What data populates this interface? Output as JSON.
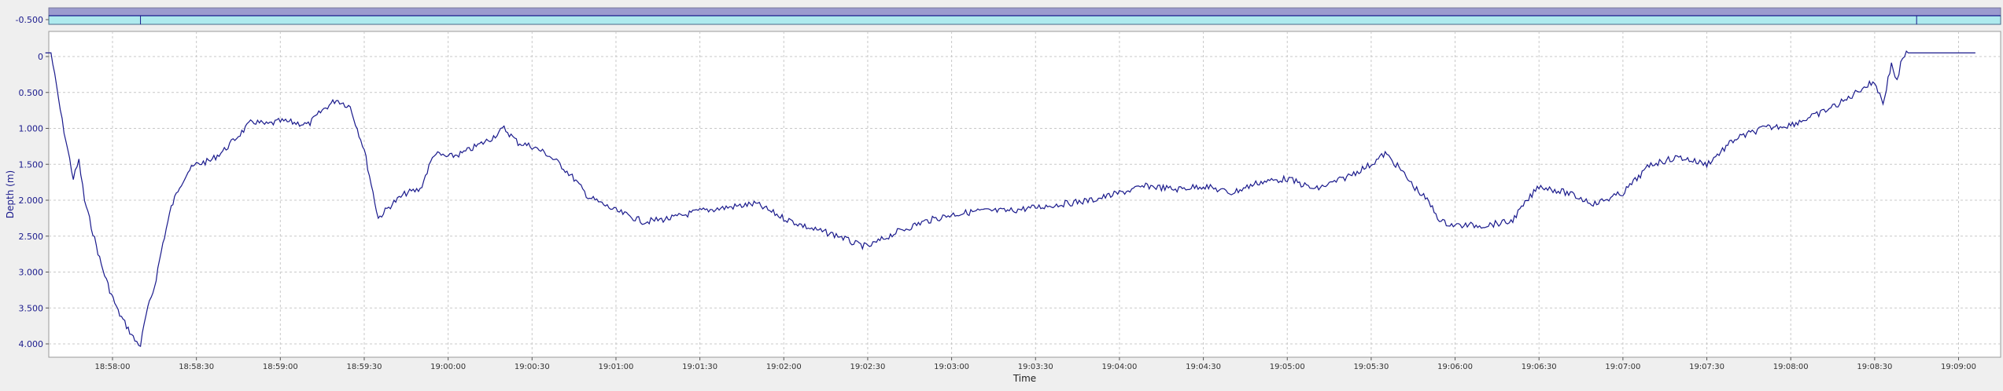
{
  "chart_data": {
    "type": "line",
    "title": "",
    "xlabel": "Time",
    "ylabel": "Depth (m)",
    "y_inverted": true,
    "ylim": [
      -0.5,
      4.2
    ],
    "xlim": [
      "18:57:34",
      "19:09:06"
    ],
    "grid": true,
    "line_color": "#1a1a8c",
    "top_strip": {
      "label": "-0.500",
      "value": -0.5,
      "colors": {
        "upper": "#9b9bcf",
        "lower": "#aeeaee"
      },
      "markers": [
        "18:58:10",
        "19:08:45"
      ]
    },
    "y_ticks": [
      {
        "value": 0,
        "label": "0"
      },
      {
        "value": 0.5,
        "label": "0.500"
      },
      {
        "value": 1.0,
        "label": "1.000"
      },
      {
        "value": 1.5,
        "label": "1.500"
      },
      {
        "value": 2.0,
        "label": "2.000"
      },
      {
        "value": 2.5,
        "label": "2.500"
      },
      {
        "value": 3.0,
        "label": "3.000"
      },
      {
        "value": 3.5,
        "label": "3.500"
      },
      {
        "value": 4.0,
        "label": "4.000"
      }
    ],
    "x_ticks": [
      "18:58:00",
      "18:58:30",
      "18:59:00",
      "18:59:30",
      "19:00:00",
      "19:00:30",
      "19:01:00",
      "19:01:30",
      "19:02:00",
      "19:02:30",
      "19:03:00",
      "19:03:30",
      "19:04:00",
      "19:04:30",
      "19:05:00",
      "19:05:30",
      "19:06:00",
      "19:06:30",
      "19:07:00",
      "19:07:30",
      "19:08:00",
      "19:08:30",
      "19:09:00"
    ],
    "series": [
      {
        "x": [
          "18:57:36",
          "18:57:38",
          "18:57:42",
          "18:57:46",
          "18:57:48",
          "18:57:50",
          "18:57:53",
          "18:57:56",
          "18:57:59",
          "18:58:02",
          "18:58:05",
          "18:58:08",
          "18:58:10",
          "18:58:12",
          "18:58:15",
          "18:58:18",
          "18:58:21",
          "18:58:24",
          "18:58:27",
          "18:58:30",
          "18:58:35",
          "18:58:40",
          "18:58:45",
          "18:58:50",
          "18:58:55",
          "18:59:00",
          "18:59:05",
          "18:59:10",
          "18:59:15",
          "18:59:20",
          "18:59:25",
          "18:59:30",
          "18:59:35",
          "18:59:40",
          "18:59:45",
          "18:59:50",
          "18:59:55",
          "19:00:00",
          "19:00:05",
          "19:00:10",
          "19:00:15",
          "19:00:20",
          "19:00:25",
          "19:00:30",
          "19:00:35",
          "19:00:40",
          "19:00:45",
          "19:00:50",
          "19:00:55",
          "19:01:00",
          "19:01:10",
          "19:01:20",
          "19:01:30",
          "19:01:40",
          "19:01:50",
          "19:02:00",
          "19:02:10",
          "19:02:20",
          "19:02:25",
          "19:02:30",
          "19:02:40",
          "19:02:50",
          "19:03:00",
          "19:03:10",
          "19:03:20",
          "19:03:30",
          "19:03:40",
          "19:03:50",
          "19:04:00",
          "19:04:10",
          "19:04:20",
          "19:04:30",
          "19:04:40",
          "19:04:50",
          "19:05:00",
          "19:05:10",
          "19:05:20",
          "19:05:30",
          "19:05:35",
          "19:05:40",
          "19:05:45",
          "19:05:50",
          "19:05:55",
          "19:06:00",
          "19:06:10",
          "19:06:20",
          "19:06:30",
          "19:06:40",
          "19:06:50",
          "19:07:00",
          "19:07:10",
          "19:07:20",
          "19:07:30",
          "19:07:40",
          "19:07:50",
          "19:08:00",
          "19:08:10",
          "19:08:20",
          "19:08:25",
          "19:08:30",
          "19:08:33",
          "19:08:36",
          "19:08:38",
          "19:08:40",
          "19:08:42",
          "19:08:45",
          "19:09:06"
        ],
        "y": [
          -0.05,
          -0.05,
          0.9,
          1.7,
          1.45,
          2.0,
          2.45,
          2.9,
          3.25,
          3.55,
          3.75,
          3.95,
          4.02,
          3.6,
          3.2,
          2.6,
          2.1,
          1.8,
          1.6,
          1.5,
          1.45,
          1.3,
          1.1,
          0.9,
          0.95,
          0.9,
          0.92,
          0.95,
          0.75,
          0.6,
          0.7,
          1.3,
          2.25,
          2.05,
          1.9,
          1.85,
          1.35,
          1.4,
          1.35,
          1.25,
          1.15,
          1.0,
          1.2,
          1.25,
          1.35,
          1.5,
          1.7,
          1.95,
          2.05,
          2.15,
          2.3,
          2.25,
          2.15,
          2.1,
          2.05,
          2.25,
          2.4,
          2.5,
          2.6,
          2.65,
          2.45,
          2.3,
          2.2,
          2.15,
          2.15,
          2.1,
          2.05,
          2.0,
          1.9,
          1.8,
          1.85,
          1.8,
          1.9,
          1.75,
          1.7,
          1.85,
          1.7,
          1.5,
          1.35,
          1.55,
          1.8,
          2.0,
          2.3,
          2.35,
          2.35,
          2.3,
          1.8,
          1.9,
          2.05,
          1.9,
          1.5,
          1.4,
          1.5,
          1.15,
          1.0,
          0.95,
          0.8,
          0.6,
          0.45,
          0.35,
          0.65,
          0.1,
          0.35,
          0.0,
          -0.05,
          -0.05,
          -0.05
        ]
      }
    ]
  }
}
